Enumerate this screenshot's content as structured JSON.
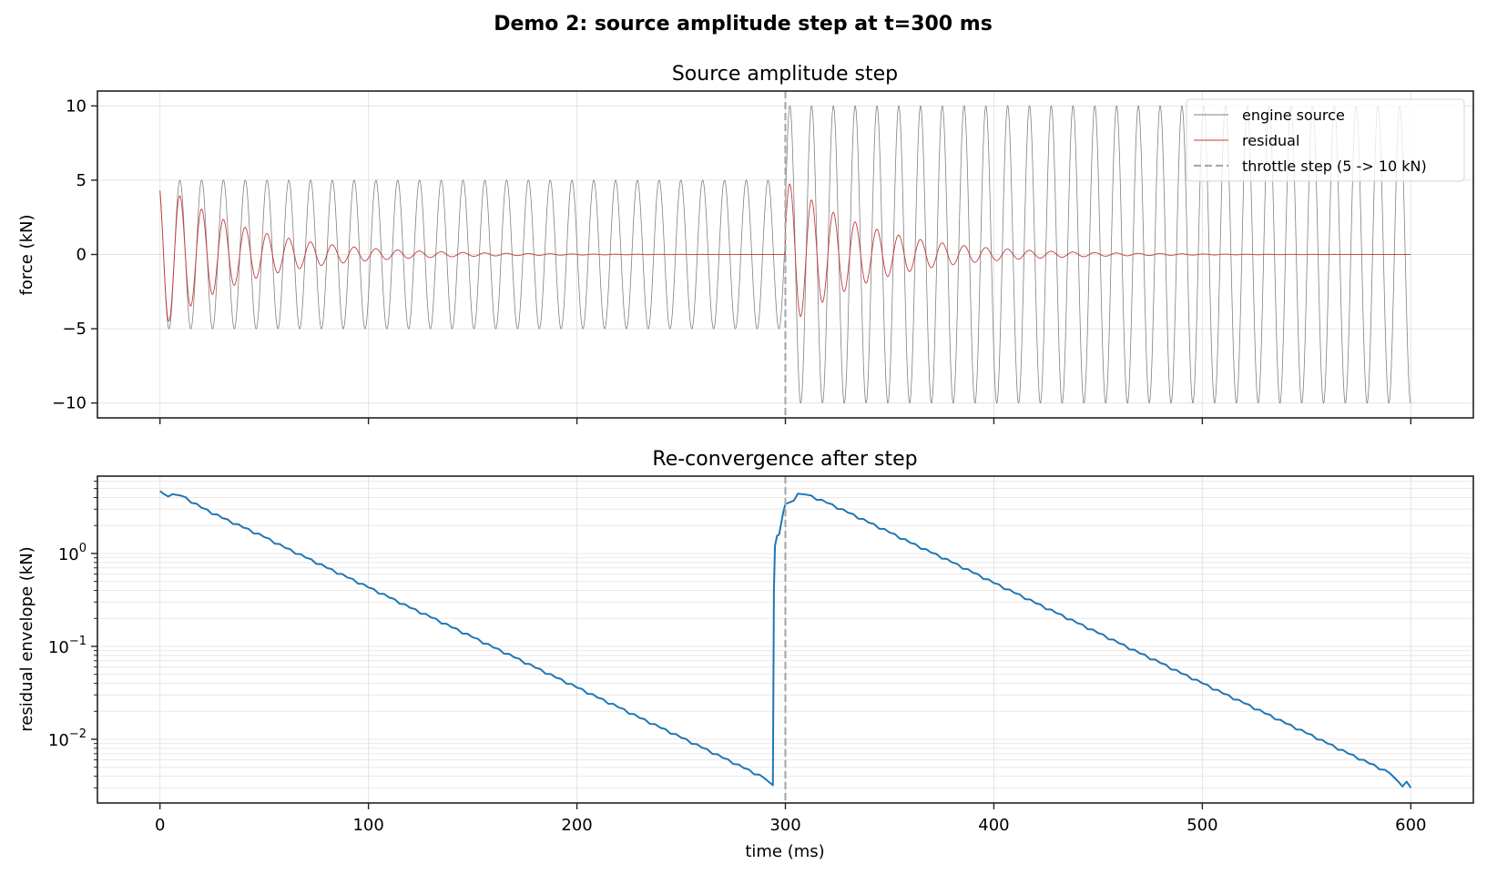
{
  "figure": {
    "suptitle": "Demo 2: source amplitude step at t=300 ms",
    "background": "#ffffff"
  },
  "chart_data": [
    {
      "type": "line",
      "title": "Source amplitude step",
      "xlabel": "",
      "ylabel": "force (kN)",
      "xlim": [
        -30,
        630
      ],
      "ylim": [
        -11,
        11
      ],
      "x_ticks": [
        0,
        100,
        200,
        300,
        400,
        500,
        600
      ],
      "x_tick_labels_visible": false,
      "y_ticks": [
        -10,
        -5,
        0,
        5,
        10
      ],
      "y_tick_labels": [
        "−10",
        "−5",
        "0",
        "5",
        "10"
      ],
      "grid": true,
      "legend_position": "upper right",
      "legend": [
        "engine source",
        "residual",
        "throttle step (5 -> 10 kN)"
      ],
      "series": [
        {
          "name": "engine source",
          "color": "#808080",
          "linewidth": 0.8,
          "kind": "sinusoid",
          "frequency_hz": 95.7,
          "phase_rad": 0.54,
          "segments": [
            {
              "t_start": 0,
              "t_end": 300,
              "amplitude": 5
            },
            {
              "t_start": 300,
              "t_end": 600,
              "amplitude": 10
            }
          ]
        },
        {
          "name": "residual",
          "color": "#c23b3b",
          "linewidth": 0.9,
          "kind": "damped_sinusoid",
          "frequency_hz": 95.7,
          "phase_rad": 0.54,
          "tau_ms": 40.5,
          "segments": [
            {
              "t_start": 0,
              "t_end": 300,
              "amplitude": 5
            },
            {
              "t_start": 300,
              "t_end": 600,
              "amplitude": 5
            }
          ],
          "peak_envelope": {
            "t": [
              0,
              10,
              20,
              30,
              40,
              50,
              60,
              80,
              100,
              150,
              200,
              300,
              310,
              320,
              330,
              340,
              350,
              360,
              380,
              400,
              450,
              500,
              600
            ],
            "values": [
              4.3,
              4.0,
              3.1,
              2.4,
              1.9,
              1.5,
              1.1,
              0.7,
              0.43,
              0.1,
              0.03,
              4.3,
              4.0,
              3.1,
              2.4,
              1.9,
              1.5,
              1.1,
              0.7,
              0.43,
              0.1,
              0.03,
              0.003
            ]
          }
        },
        {
          "name": "throttle step (5 -> 10 kN)",
          "color": "#aaaaaa",
          "linestyle": "dashed",
          "kind": "vline",
          "x": 300
        }
      ]
    },
    {
      "type": "line",
      "title": "Re-convergence after step",
      "xlabel": "time (ms)",
      "ylabel": "residual envelope (kN)",
      "yscale": "log",
      "xlim": [
        -30,
        630
      ],
      "ylim": [
        0.00206,
        6.8
      ],
      "x_ticks": [
        0,
        100,
        200,
        300,
        400,
        500,
        600
      ],
      "x_tick_labels": [
        "0",
        "100",
        "200",
        "300",
        "400",
        "500",
        "600"
      ],
      "y_ticks": [
        0.01,
        0.1,
        1
      ],
      "y_tick_labels": [
        [
          "10",
          "−2"
        ],
        [
          "10",
          "−1"
        ],
        [
          "10",
          "0"
        ]
      ],
      "grid": true,
      "grid_minor": true,
      "series": [
        {
          "name": "residual envelope",
          "color": "#1f77b4",
          "linewidth": 2,
          "x": [
            0,
            2,
            4,
            6,
            10,
            20,
            30,
            40,
            50,
            60,
            70,
            80,
            90,
            100,
            110,
            120,
            130,
            140,
            150,
            160,
            170,
            180,
            190,
            200,
            210,
            220,
            230,
            240,
            250,
            260,
            270,
            280,
            290,
            294,
            294.5,
            295,
            296,
            297,
            299,
            300,
            302,
            304,
            306,
            310,
            320,
            330,
            340,
            350,
            360,
            370,
            380,
            390,
            400,
            410,
            420,
            430,
            440,
            450,
            460,
            470,
            480,
            490,
            500,
            510,
            520,
            530,
            540,
            550,
            560,
            570,
            580,
            590,
            594,
            596,
            598,
            600
          ],
          "values": [
            4.7,
            4.35,
            4.1,
            4.35,
            4.2,
            3.1,
            2.4,
            1.9,
            1.5,
            1.15,
            0.9,
            0.7,
            0.55,
            0.43,
            0.335,
            0.26,
            0.205,
            0.16,
            0.125,
            0.097,
            0.076,
            0.059,
            0.046,
            0.036,
            0.028,
            0.022,
            0.017,
            0.0133,
            0.0104,
            0.0081,
            0.0063,
            0.0049,
            0.0038,
            0.0032,
            0.4,
            1.2,
            1.55,
            1.6,
            2.8,
            3.4,
            3.55,
            3.7,
            4.4,
            4.3,
            3.5,
            2.75,
            2.15,
            1.68,
            1.3,
            1.02,
            0.8,
            0.62,
            0.48,
            0.375,
            0.292,
            0.228,
            0.178,
            0.139,
            0.108,
            0.084,
            0.066,
            0.051,
            0.04,
            0.031,
            0.0244,
            0.019,
            0.0148,
            0.0116,
            0.009,
            0.007,
            0.0055,
            0.0043,
            0.0035,
            0.0031,
            0.0035,
            0.003
          ]
        },
        {
          "name": "throttle step",
          "color": "#aaaaaa",
          "linestyle": "dashed",
          "kind": "vline",
          "x": 300
        }
      ]
    }
  ]
}
